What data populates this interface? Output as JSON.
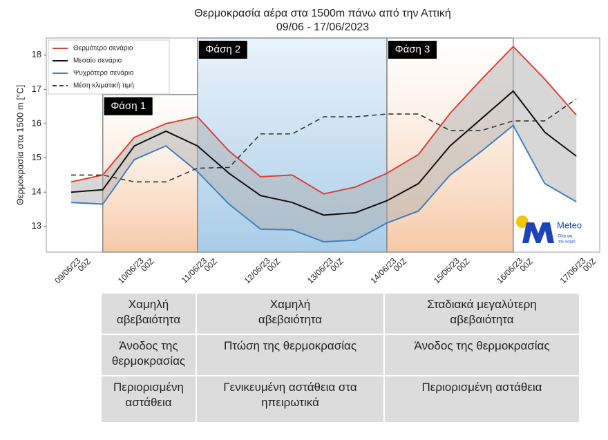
{
  "chart_data": {
    "type": "line",
    "title": "Θερμοκρασία αέρα στα 1500m πάνω από την Αττική",
    "subtitle": "09/06 - 17/06/2023",
    "y_label": "Θερμοκρασία στα 1500 m [°C]",
    "categories": [
      [
        "09/06/23",
        "00Z"
      ],
      null,
      [
        "10/06/23",
        "00Z"
      ],
      null,
      [
        "11/06/23",
        "00Z"
      ],
      null,
      [
        "12/06/23",
        "00Z"
      ],
      null,
      [
        "13/06/23",
        "00Z"
      ],
      null,
      [
        "14/06/23",
        "00Z"
      ],
      null,
      [
        "15/06/23",
        "00Z"
      ],
      null,
      [
        "16/06/23",
        "00Z"
      ],
      null,
      [
        "17/06/23",
        "00Z"
      ]
    ],
    "series": [
      {
        "name": "Θερμότερο σενάριο",
        "color": "#d9423a",
        "values": [
          14.3,
          14.5,
          15.6,
          16.0,
          16.2,
          15.2,
          14.45,
          14.5,
          13.95,
          14.15,
          14.55,
          15.1,
          16.3,
          17.3,
          18.25,
          17.3,
          16.25
        ]
      },
      {
        "name": "Μεσαίο σενάριο",
        "color": "#111111",
        "values": [
          14.0,
          14.07,
          15.35,
          15.78,
          15.35,
          14.55,
          13.9,
          13.7,
          13.33,
          13.4,
          13.75,
          14.25,
          15.35,
          16.15,
          16.95,
          15.75,
          15.05
        ]
      },
      {
        "name": "Ψυχρότερο σενάριο",
        "color": "#3f7fc0",
        "values": [
          13.7,
          13.65,
          14.95,
          15.35,
          14.6,
          13.65,
          12.92,
          12.9,
          12.55,
          12.6,
          13.1,
          13.45,
          14.5,
          15.2,
          15.95,
          14.25,
          13.72
        ]
      },
      {
        "name": "Μέση κλιματική τιμή",
        "color": "#333333",
        "dashed": true,
        "values": [
          14.5,
          14.5,
          14.3,
          14.3,
          14.7,
          14.72,
          15.7,
          15.7,
          16.2,
          16.2,
          16.28,
          16.28,
          15.8,
          15.8,
          16.08,
          16.08,
          16.72
        ]
      }
    ],
    "ylim": [
      12.25,
      18.5
    ],
    "yticks": [
      13,
      14,
      15,
      16,
      17,
      18
    ],
    "grid": false,
    "legend": "upper left",
    "band_color": "#b0b0b0",
    "phases": [
      {
        "label": "Φάση 1",
        "start": 1,
        "end": 4,
        "top": 16.85,
        "color": "#f7c9a6"
      },
      {
        "label": "Φάση 2",
        "start": 4,
        "end": 10,
        "top": 18.5,
        "color": "#a9cde8"
      },
      {
        "label": "Φάση 3",
        "start": 10,
        "end": 14,
        "top": 18.5,
        "color": "#f7c9a6"
      }
    ]
  },
  "logo": {
    "name": "Meteo",
    "tagline": [
      "Όλα για",
      "τον καιρό"
    ]
  },
  "table": {
    "rows": [
      [
        "Χαμηλή\nαβεβαιότητα",
        "Χαμηλή\nαβεβαιότητα",
        "Σταδιακά μεγαλύτερη\nαβεβαιότητα"
      ],
      [
        "Άνοδος της\nθερμοκρασίας",
        "Πτώση της θερμοκρασίας",
        "Άνοδος της θερμοκρασίας"
      ],
      [
        "Περιορισμένη\nαστάθεια",
        "Γενικευμένη αστάθεια στα\nηπειρωτικά",
        "Περιορισμένη αστάθεια"
      ]
    ]
  }
}
